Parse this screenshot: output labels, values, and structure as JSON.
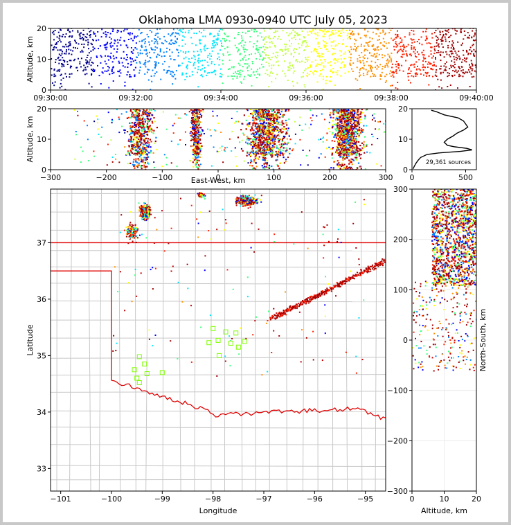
{
  "chart_data": {
    "type": "scatter",
    "title": "Oklahoma LMA 0930-0940 UTC July 05, 2023",
    "color_scale": [
      "#00008b",
      "#0000ff",
      "#0080ff",
      "#00e5ff",
      "#40ff80",
      "#c0ff40",
      "#ffff00",
      "#ff9000",
      "#ff2000",
      "#a00000"
    ],
    "source_count_label": "29,361 sources",
    "panels": [
      {
        "id": "time_altitude",
        "type": "scatter",
        "xlabel": "",
        "ylabel": "Altitude, km",
        "xlim": [
          "09:30:00",
          "09:40:00"
        ],
        "ylim": [
          0,
          20
        ],
        "xticks": [
          "09:30:00",
          "09:32:00",
          "09:34:00",
          "09:36:00",
          "09:38:00",
          "09:40:00"
        ],
        "yticks": [
          "0",
          "10",
          "20"
        ],
        "density_profile_time": [
          0.9,
          0.8,
          0.5,
          0.9,
          0.6,
          0.7,
          0.6,
          0.7,
          0.6,
          0.8,
          0.7,
          0.6,
          0.7,
          0.6,
          0.7,
          0.8,
          0.6,
          0.7,
          0.6,
          0.7,
          0.8,
          0.6,
          0.7,
          0.6,
          0.7,
          0.8,
          0.7,
          0.6,
          0.8,
          0.7,
          0.9,
          0.8,
          0.9,
          0.8,
          0.9,
          0.8,
          0.9,
          1.0,
          0.9,
          1.0
        ]
      },
      {
        "id": "eastwest_altitude",
        "type": "scatter",
        "xlabel": "East-West, km",
        "ylabel": "Altitude, km",
        "xlim": [
          -300,
          300
        ],
        "ylim": [
          0,
          20
        ],
        "xticks": [
          "−300",
          "−200",
          "−100",
          "0",
          "100",
          "200",
          "300"
        ],
        "yticks": [
          "0",
          "10",
          "20"
        ],
        "clusters": [
          {
            "x_center": -140,
            "x_width": 35,
            "alt_center": 11,
            "density": 0.6
          },
          {
            "x_center": -40,
            "x_width": 15,
            "alt_center": 13,
            "density": 0.4
          },
          {
            "x_center": 85,
            "x_width": 60,
            "alt_center": 12,
            "density": 1.0
          },
          {
            "x_center": 230,
            "x_width": 45,
            "alt_center": 13,
            "density": 1.0
          }
        ]
      },
      {
        "id": "altitude_histogram",
        "type": "line",
        "xlabel": "",
        "ylabel": "",
        "xlim": [
          0,
          600
        ],
        "ylim": [
          0,
          20
        ],
        "xticks": [
          "0",
          "500"
        ],
        "yticks": [
          "0",
          "10",
          "20"
        ],
        "altitudes": [
          0.3,
          1,
          2,
          3,
          4,
          5,
          5.5,
          6,
          6.5,
          7,
          7.5,
          8,
          9,
          10,
          11,
          12,
          13,
          14,
          15,
          16,
          17,
          18,
          19,
          19.5
        ],
        "counts": [
          10,
          20,
          35,
          55,
          80,
          140,
          250,
          450,
          560,
          510,
          400,
          330,
          300,
          330,
          380,
          420,
          480,
          520,
          500,
          480,
          430,
          300,
          230,
          180
        ]
      },
      {
        "id": "plan_view",
        "type": "scatter",
        "xlabel": "Longitude",
        "ylabel": "Latitude",
        "xlim": [
          -101.2,
          -94.6
        ],
        "ylim": [
          32.6,
          37.95
        ],
        "xticks": [
          "−101",
          "−100",
          "−99",
          "−98",
          "−97",
          "−96",
          "−95"
        ],
        "yticks": [
          "33",
          "34",
          "35",
          "36",
          "37"
        ],
        "stations": [
          {
            "lon": -99.45,
            "lat": 34.98
          },
          {
            "lon": -99.35,
            "lat": 34.85
          },
          {
            "lon": -99.55,
            "lat": 34.75
          },
          {
            "lon": -99.3,
            "lat": 34.68
          },
          {
            "lon": -99.5,
            "lat": 34.6
          },
          {
            "lon": -99.45,
            "lat": 34.52
          },
          {
            "lon": -99.0,
            "lat": 34.7
          },
          {
            "lon": -98.0,
            "lat": 35.48
          },
          {
            "lon": -97.75,
            "lat": 35.42
          },
          {
            "lon": -97.55,
            "lat": 35.4
          },
          {
            "lon": -98.08,
            "lat": 35.23
          },
          {
            "lon": -97.9,
            "lat": 35.27
          },
          {
            "lon": -97.65,
            "lat": 35.22
          },
          {
            "lon": -97.5,
            "lat": 35.15
          },
          {
            "lon": -97.38,
            "lat": 35.25
          },
          {
            "lon": -97.88,
            "lat": 35.0
          }
        ]
      },
      {
        "id": "northsouth_altitude",
        "type": "scatter",
        "xlabel": "Altitude, km",
        "ylabel": "North-South, km",
        "xlim": [
          0,
          20
        ],
        "ylim": [
          -300,
          300
        ],
        "xticks": [
          "0",
          "10",
          "20"
        ],
        "yticks": [
          "−300",
          "−200",
          "−100",
          "0",
          "100",
          "200",
          "300"
        ]
      }
    ]
  }
}
